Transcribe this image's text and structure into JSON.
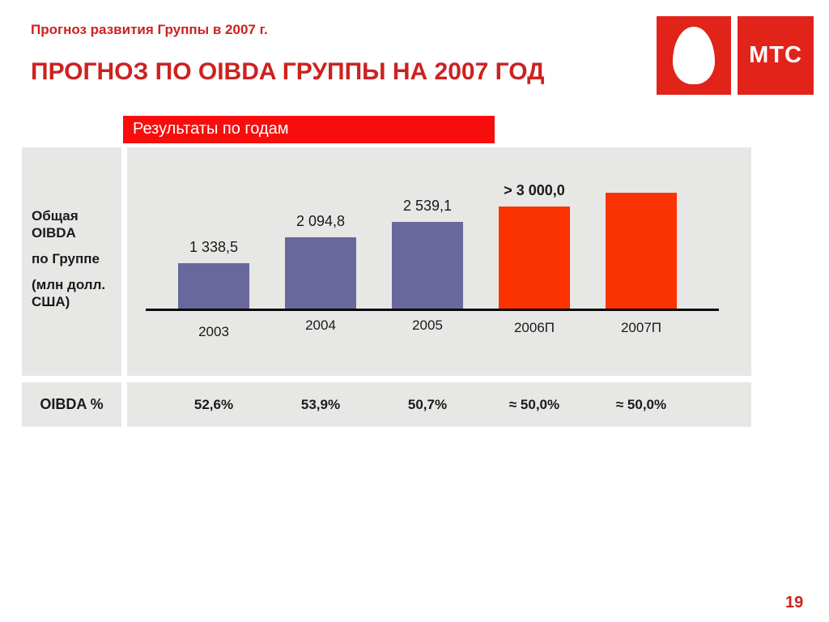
{
  "slide": {
    "kicker": "Прогноз развития Группы в 2007 г.",
    "title": "ПРОГНОЗ ПО OIBDA ГРУППЫ НА 2007 ГОД",
    "banner": "Результаты по годам",
    "page_number": "19"
  },
  "logo": {
    "brand": "МТС",
    "egg_icon": "egg-icon"
  },
  "left_panel": {
    "paragraphs": [
      "Общая OIBDA",
      "по Группе",
      "(млн долл. США)"
    ]
  },
  "bottom_row": {
    "label": "OIBDA %",
    "values": [
      "52,6%",
      "53,9%",
      "50,7%",
      "≈ 50,0%",
      "≈ 50,0%"
    ]
  },
  "colors": {
    "accent_red": "#cc2220",
    "banner_red": "#f80d0d",
    "logo_red": "#e2231a",
    "bar_purple": "#68689d",
    "bar_orange": "#fa3300",
    "panel_gray": "#e7e7e5"
  },
  "chart_data": {
    "type": "bar",
    "title": "Общая OIBDA по Группе (млн долл. США)",
    "xlabel": "",
    "ylabel": "млн долл. США",
    "categories": [
      "2003",
      "2004",
      "2005",
      "2006П",
      "2007П"
    ],
    "values": [
      1338.5,
      2094.8,
      2539.1,
      3000,
      3400
    ],
    "value_labels": [
      "1 338,5",
      "2 094,8",
      "2 539,1",
      "> 3 000,0",
      ""
    ],
    "value_label_bold": [
      false,
      false,
      false,
      true,
      false
    ],
    "bar_colors": [
      "purple",
      "purple",
      "purple",
      "orange",
      "orange"
    ],
    "ylim": [
      0,
      4700
    ],
    "grid": false,
    "legend": "none",
    "margin_row_label": "OIBDA %",
    "margin_values": [
      "52,6%",
      "53,9%",
      "50,7%",
      "≈ 50,0%",
      "≈ 50,0%"
    ]
  }
}
